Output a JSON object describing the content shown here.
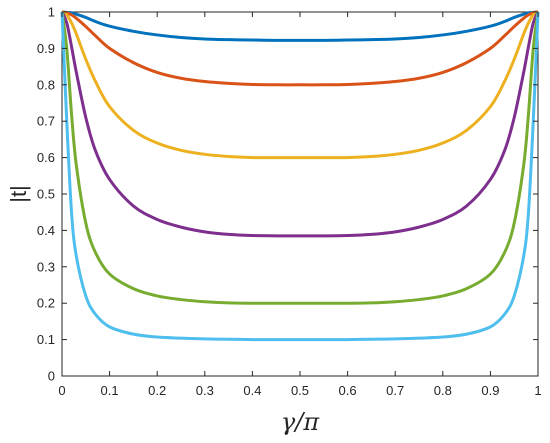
{
  "chart_data": {
    "type": "line",
    "title": "",
    "xlabel": "γ/π",
    "ylabel": "|t|",
    "xlim": [
      0,
      1
    ],
    "ylim": [
      0,
      1
    ],
    "grid": false,
    "legend": "none",
    "xticks": [
      "0",
      "0.1",
      "0.2",
      "0.3",
      "0.4",
      "0.5",
      "0.6",
      "0.7",
      "0.8",
      "0.9",
      "1"
    ],
    "yticks": [
      "0",
      "0.1",
      "0.2",
      "0.3",
      "0.4",
      "0.5",
      "0.6",
      "0.7",
      "0.8",
      "0.9",
      "1"
    ],
    "x": [
      0,
      0.01,
      0.02,
      0.03,
      0.05,
      0.07,
      0.1,
      0.15,
      0.2,
      0.25,
      0.3,
      0.35,
      0.4,
      0.45,
      0.5,
      0.55,
      0.6,
      0.65,
      0.7,
      0.75,
      0.8,
      0.85,
      0.9,
      0.93,
      0.95,
      0.97,
      0.98,
      0.99,
      1
    ],
    "series": [
      {
        "color": "#0072BD",
        "values": [
          1,
          0.999,
          0.998,
          0.994,
          0.985,
          0.974,
          0.961,
          0.947,
          0.937,
          0.93,
          0.926,
          0.924,
          0.923,
          0.922,
          0.922,
          0.922,
          0.923,
          0.924,
          0.926,
          0.93,
          0.937,
          0.947,
          0.961,
          0.974,
          0.985,
          0.994,
          0.998,
          0.999,
          1
        ]
      },
      {
        "color": "#D95319",
        "values": [
          1,
          0.998,
          0.992,
          0.983,
          0.96,
          0.935,
          0.9,
          0.861,
          0.834,
          0.818,
          0.809,
          0.804,
          0.801,
          0.8,
          0.8,
          0.8,
          0.801,
          0.804,
          0.809,
          0.818,
          0.834,
          0.861,
          0.9,
          0.935,
          0.96,
          0.983,
          0.992,
          0.998,
          1
        ]
      },
      {
        "color": "#EDB120",
        "values": [
          1,
          0.992,
          0.97,
          0.94,
          0.87,
          0.81,
          0.74,
          0.675,
          0.64,
          0.62,
          0.609,
          0.603,
          0.6,
          0.6,
          0.6,
          0.6,
          0.6,
          0.603,
          0.609,
          0.62,
          0.64,
          0.675,
          0.74,
          0.81,
          0.87,
          0.94,
          0.97,
          0.992,
          1
        ]
      },
      {
        "color": "#7E2F8E",
        "values": [
          1,
          0.97,
          0.905,
          0.835,
          0.71,
          0.62,
          0.54,
          0.467,
          0.43,
          0.409,
          0.396,
          0.389,
          0.386,
          0.385,
          0.385,
          0.385,
          0.386,
          0.389,
          0.396,
          0.409,
          0.43,
          0.467,
          0.54,
          0.62,
          0.71,
          0.835,
          0.905,
          0.97,
          1
        ]
      },
      {
        "color": "#77AC30",
        "values": [
          1,
          0.9,
          0.72,
          0.58,
          0.42,
          0.34,
          0.28,
          0.24,
          0.22,
          0.21,
          0.204,
          0.201,
          0.2,
          0.2,
          0.2,
          0.2,
          0.2,
          0.201,
          0.204,
          0.21,
          0.22,
          0.24,
          0.28,
          0.34,
          0.42,
          0.58,
          0.72,
          0.9,
          1
        ]
      },
      {
        "color": "#4DBEEE",
        "values": [
          1,
          0.7,
          0.45,
          0.33,
          0.22,
          0.17,
          0.135,
          0.115,
          0.107,
          0.104,
          0.102,
          0.101,
          0.1,
          0.1,
          0.1,
          0.1,
          0.1,
          0.101,
          0.102,
          0.104,
          0.107,
          0.115,
          0.135,
          0.17,
          0.22,
          0.33,
          0.45,
          0.7,
          1
        ]
      }
    ]
  }
}
